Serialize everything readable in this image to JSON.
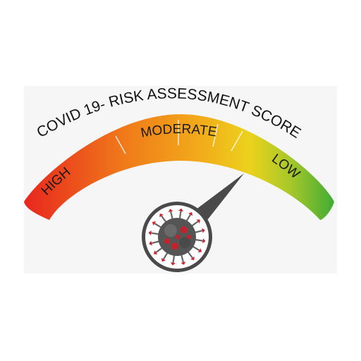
{
  "gauge": {
    "title": "COVID 19- RISK ASSESSMENT SCORE",
    "zones": [
      {
        "label": "HIGH"
      },
      {
        "label": "MODERATE"
      },
      {
        "label": "LOW"
      }
    ],
    "needle_level": "moderate-low boundary",
    "colors": {
      "high": "#e8261e",
      "moderate": "#f2a81a",
      "moderate_low": "#ecd21c",
      "low": "#3aaa35",
      "needle": "#4a4a4a",
      "virus_body": "#555555",
      "virus_spikes": "#d0202a"
    }
  },
  "icons": {
    "needle": "gauge-needle-icon",
    "hub": "coronavirus-icon"
  }
}
